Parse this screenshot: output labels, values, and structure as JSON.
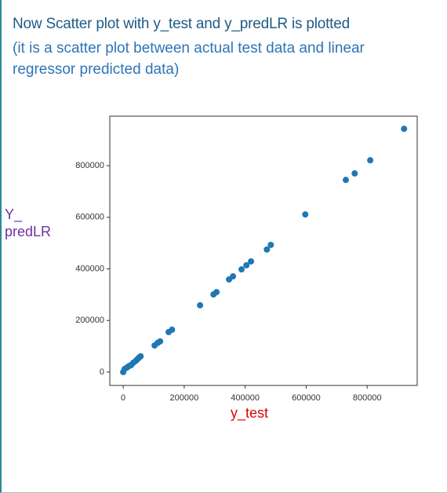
{
  "chart_data": {
    "type": "scatter",
    "title": "Now Scatter plot with y_test and y_predLR is plotted",
    "subtitle": "(it is a scatter plot between actual test data and linear regressor predicted data)",
    "x_label": "y_test",
    "y_label": "Y_ predLR",
    "color": "#1f77b4",
    "x": [
      0,
      5000,
      13000,
      20000,
      26000,
      33000,
      41000,
      46000,
      51000,
      57000,
      103000,
      113000,
      121000,
      149000,
      160000,
      252000,
      296000,
      306000,
      347000,
      360000,
      388000,
      404000,
      419000,
      471000,
      484000,
      597000,
      730000,
      759000,
      810000,
      921000
    ],
    "values": [
      0,
      12000,
      18000,
      24000,
      27000,
      36000,
      43000,
      49000,
      55000,
      61000,
      103000,
      113000,
      119000,
      155000,
      164000,
      259000,
      301000,
      310000,
      359000,
      371000,
      398000,
      414000,
      429000,
      475000,
      493000,
      611000,
      745000,
      770000,
      821000,
      943000
    ],
    "xlim": [
      -44000,
      964000
    ],
    "ylim": [
      -52000,
      992000
    ],
    "xticks": [
      0,
      200000,
      400000,
      600000,
      800000
    ],
    "yticks": [
      0,
      200000,
      400000,
      600000,
      800000
    ]
  }
}
